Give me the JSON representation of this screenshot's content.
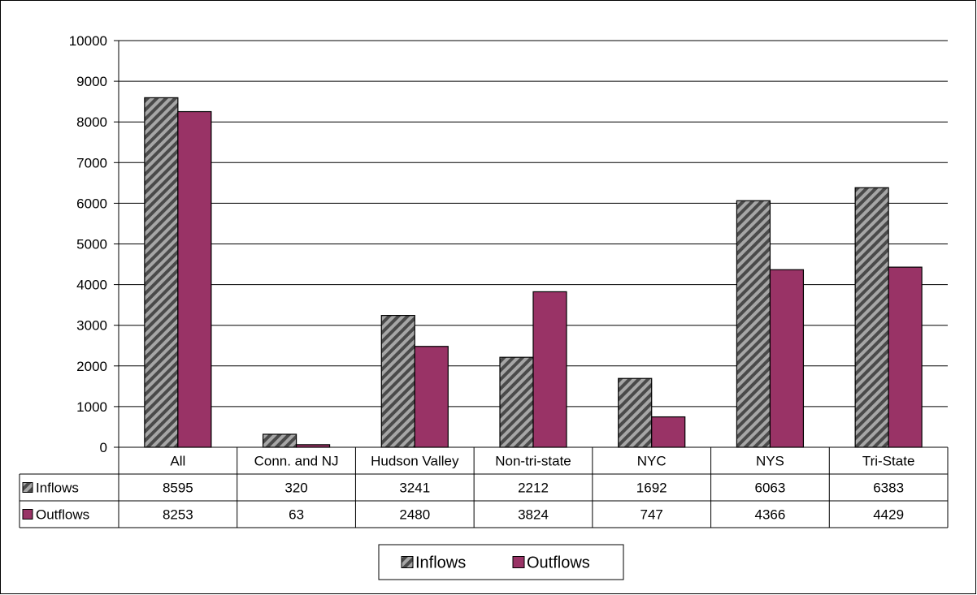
{
  "chart_data": {
    "type": "bar",
    "title": "",
    "xlabel": "",
    "ylabel": "",
    "ylim": [
      0,
      10000
    ],
    "yticks": [
      0,
      1000,
      2000,
      3000,
      4000,
      5000,
      6000,
      7000,
      8000,
      9000,
      10000
    ],
    "grid": true,
    "legend_position": "bottom",
    "has_data_table": true,
    "categories": [
      "All",
      "Conn. and NJ",
      "Hudson Valley",
      "Non-tri-state",
      "NYC",
      "NYS",
      "Tri-State"
    ],
    "series": [
      {
        "name": "Inflows",
        "color": "#808080",
        "pattern": "diagonal-hatch",
        "values": [
          8595,
          320,
          3241,
          2212,
          1692,
          6063,
          6383
        ]
      },
      {
        "name": "Outflows",
        "color": "#993366",
        "pattern": "solid",
        "values": [
          8253,
          63,
          2480,
          3824,
          747,
          4366,
          4429
        ]
      }
    ]
  }
}
